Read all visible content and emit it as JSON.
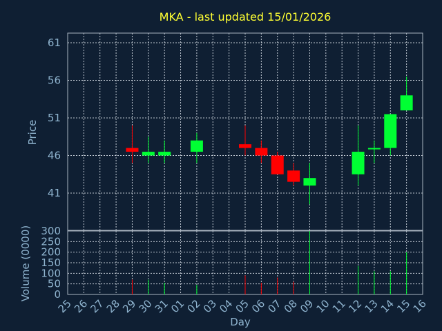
{
  "title": "MKA - last updated 15/01/2026",
  "chart_data": [
    {
      "type": "candlestick",
      "ylabel": "Price",
      "ylim": [
        36,
        62
      ],
      "yticks": [
        41,
        46,
        51,
        56,
        61
      ],
      "grid": true,
      "colors": {
        "up": "#00ff33",
        "down": "#ff0000"
      },
      "categories": [
        "25",
        "26",
        "27",
        "28",
        "29",
        "30",
        "31",
        "01",
        "02",
        "03",
        "04",
        "05",
        "06",
        "07",
        "08",
        "09",
        "10",
        "11",
        "12",
        "13",
        "14",
        "15",
        "16"
      ],
      "candles": [
        {
          "x": "29",
          "open": 47.0,
          "high": 50.0,
          "low": 45.0,
          "close": 46.5
        },
        {
          "x": "30",
          "open": 46.0,
          "high": 48.5,
          "low": 45.0,
          "close": 46.5
        },
        {
          "x": "31",
          "open": 46.0,
          "high": 48.0,
          "low": 45.0,
          "close": 46.5
        },
        {
          "x": "02",
          "open": 46.5,
          "high": 49.0,
          "low": 45.0,
          "close": 48.0
        },
        {
          "x": "05",
          "open": 47.5,
          "high": 50.0,
          "low": 46.0,
          "close": 47.0
        },
        {
          "x": "06",
          "open": 47.0,
          "high": 48.0,
          "low": 45.0,
          "close": 46.0
        },
        {
          "x": "07",
          "open": 46.0,
          "high": 46.5,
          "low": 43.5,
          "close": 43.5
        },
        {
          "x": "08",
          "open": 44.0,
          "high": 45.0,
          "low": 42.0,
          "close": 42.5
        },
        {
          "x": "09",
          "open": 42.0,
          "high": 45.0,
          "low": 39.5,
          "close": 43.0
        },
        {
          "x": "12",
          "open": 43.5,
          "high": 50.0,
          "low": 42.0,
          "close": 46.5
        },
        {
          "x": "13",
          "open": 47.0,
          "high": 48.0,
          "low": 45.0,
          "close": 47.0
        },
        {
          "x": "14",
          "open": 47.0,
          "high": 51.5,
          "low": 46.0,
          "close": 51.5
        },
        {
          "x": "15",
          "open": 52.0,
          "high": 56.5,
          "low": 52.0,
          "close": 54.0
        }
      ]
    },
    {
      "type": "bar",
      "xlabel": "Day",
      "ylabel": "Volume (0000)",
      "ylim": [
        0,
        300
      ],
      "yticks": [
        0,
        50,
        100,
        150,
        200,
        250,
        300
      ],
      "grid": true,
      "categories": [
        "25",
        "26",
        "27",
        "28",
        "29",
        "30",
        "31",
        "01",
        "02",
        "03",
        "04",
        "05",
        "06",
        "07",
        "08",
        "09",
        "10",
        "11",
        "12",
        "13",
        "14",
        "15",
        "16"
      ],
      "bars": [
        {
          "x": "29",
          "value": 70,
          "dir": "down"
        },
        {
          "x": "30",
          "value": 70,
          "dir": "up"
        },
        {
          "x": "31",
          "value": 55,
          "dir": "up"
        },
        {
          "x": "02",
          "value": 45,
          "dir": "up"
        },
        {
          "x": "05",
          "value": 90,
          "dir": "down"
        },
        {
          "x": "06",
          "value": 55,
          "dir": "down"
        },
        {
          "x": "07",
          "value": 80,
          "dir": "down"
        },
        {
          "x": "08",
          "value": 60,
          "dir": "down"
        },
        {
          "x": "09",
          "value": 300,
          "dir": "up"
        },
        {
          "x": "12",
          "value": 135,
          "dir": "up"
        },
        {
          "x": "13",
          "value": 110,
          "dir": "up"
        },
        {
          "x": "14",
          "value": 110,
          "dir": "up"
        },
        {
          "x": "15",
          "value": 200,
          "dir": "up"
        }
      ]
    }
  ]
}
